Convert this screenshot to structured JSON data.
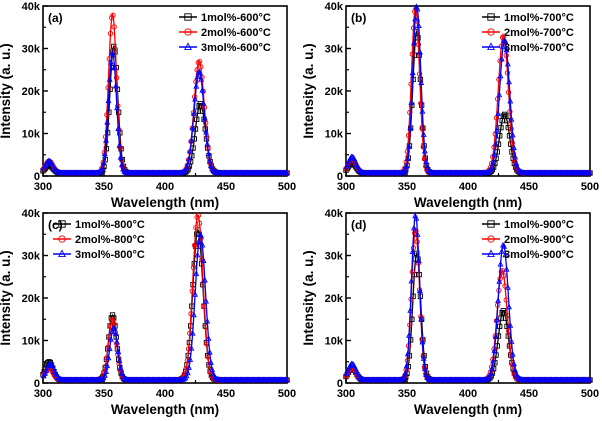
{
  "chart_data": [
    {
      "type": "line",
      "panel_label": "(a)",
      "xlabel": "Wavelength (nm)",
      "ylabel": "Intensity (a. u.)",
      "xlim": [
        300,
        500
      ],
      "ylim": [
        0,
        40000
      ],
      "xticks": [
        "300",
        "350",
        "400",
        "450",
        "500"
      ],
      "yticks": [
        "0",
        "10k",
        "20k",
        "30k",
        "40k"
      ],
      "legend_position": "top-right",
      "series": [
        {
          "name": "1mol%-600°C",
          "color": "#000000",
          "marker": "square",
          "peaks": [
            {
              "x": 305,
              "y": 2500
            },
            {
              "x": 358,
              "y": 30500
            },
            {
              "x": 429,
              "y": 17000
            }
          ]
        },
        {
          "name": "2mol%-600°C",
          "color": "#ff0000",
          "marker": "circle",
          "peaks": [
            {
              "x": 305,
              "y": 3500
            },
            {
              "x": 357,
              "y": 38000
            },
            {
              "x": 428,
              "y": 27000
            }
          ]
        },
        {
          "name": "3mol%-600°C",
          "color": "#0000ff",
          "marker": "triangle",
          "peaks": [
            {
              "x": 305,
              "y": 3500
            },
            {
              "x": 357,
              "y": 29000
            },
            {
              "x": 428,
              "y": 24500
            }
          ]
        }
      ]
    },
    {
      "type": "line",
      "panel_label": "(b)",
      "xlabel": "Wavelength (nm)",
      "ylabel": "Intensity (a. u.)",
      "xlim": [
        300,
        500
      ],
      "ylim": [
        0,
        40000
      ],
      "xticks": [
        "300",
        "350",
        "400",
        "450",
        "500"
      ],
      "yticks": [
        "0",
        "10k",
        "20k",
        "30k",
        "40k"
      ],
      "legend_position": "top-right",
      "series": [
        {
          "name": "1mol%-700°C",
          "color": "#000000",
          "marker": "square",
          "peaks": [
            {
              "x": 305,
              "y": 3000
            },
            {
              "x": 358,
              "y": 34000
            },
            {
              "x": 430,
              "y": 14500
            }
          ]
        },
        {
          "name": "2mol%-700°C",
          "color": "#ff0000",
          "marker": "circle",
          "peaks": [
            {
              "x": 305,
              "y": 4000
            },
            {
              "x": 357,
              "y": 39500
            },
            {
              "x": 429,
              "y": 33000
            }
          ]
        },
        {
          "name": "3mol%-700°C",
          "color": "#0000ff",
          "marker": "triangle",
          "peaks": [
            {
              "x": 305,
              "y": 4500
            },
            {
              "x": 358,
              "y": 40000
            },
            {
              "x": 430,
              "y": 32000
            }
          ]
        }
      ]
    },
    {
      "type": "line",
      "panel_label": "(c)",
      "xlabel": "Wavelength (nm)",
      "ylabel": "Intensity (a. u.)",
      "xlim": [
        300,
        500
      ],
      "ylim": [
        0,
        40000
      ],
      "xticks": [
        "300",
        "350",
        "400",
        "450",
        "500"
      ],
      "yticks": [
        "0",
        "10k",
        "20k",
        "30k",
        "40k"
      ],
      "legend_position": "top-left",
      "series": [
        {
          "name": "1mol%-800°C",
          "color": "#000000",
          "marker": "square",
          "peaks": [
            {
              "x": 305,
              "y": 5000
            },
            {
              "x": 357,
              "y": 16000
            },
            {
              "x": 427,
              "y": 36000
            }
          ]
        },
        {
          "name": "2mol%-800°C",
          "color": "#ff0000",
          "marker": "circle",
          "peaks": [
            {
              "x": 305,
              "y": 3500
            },
            {
              "x": 357,
              "y": 15000
            },
            {
              "x": 427,
              "y": 39500
            }
          ]
        },
        {
          "name": "3mol%-800°C",
          "color": "#0000ff",
          "marker": "triangle",
          "peaks": [
            {
              "x": 306,
              "y": 4500
            },
            {
              "x": 358,
              "y": 13000
            },
            {
              "x": 429,
              "y": 35000
            }
          ]
        }
      ]
    },
    {
      "type": "line",
      "panel_label": "(d)",
      "xlabel": "Wavelength (nm)",
      "ylabel": "Intensity (a. u.)",
      "xlim": [
        300,
        500
      ],
      "ylim": [
        0,
        40000
      ],
      "xticks": [
        "300",
        "350",
        "400",
        "450",
        "500"
      ],
      "yticks": [
        "0",
        "10k",
        "20k",
        "30k",
        "40k"
      ],
      "legend_position": "top-right",
      "series": [
        {
          "name": "1mol%-900°C",
          "color": "#000000",
          "marker": "square",
          "peaks": [
            {
              "x": 305,
              "y": 3500
            },
            {
              "x": 358,
              "y": 30500
            },
            {
              "x": 429,
              "y": 17000
            }
          ]
        },
        {
          "name": "2mol%-900°C",
          "color": "#ff0000",
          "marker": "circle",
          "peaks": [
            {
              "x": 305,
              "y": 3500
            },
            {
              "x": 357,
              "y": 36000
            },
            {
              "x": 428,
              "y": 26500
            }
          ]
        },
        {
          "name": "3mol%-900°C",
          "color": "#0000ff",
          "marker": "triangle",
          "peaks": [
            {
              "x": 305,
              "y": 4500
            },
            {
              "x": 357,
              "y": 39500
            },
            {
              "x": 429,
              "y": 32500
            }
          ]
        }
      ]
    }
  ]
}
